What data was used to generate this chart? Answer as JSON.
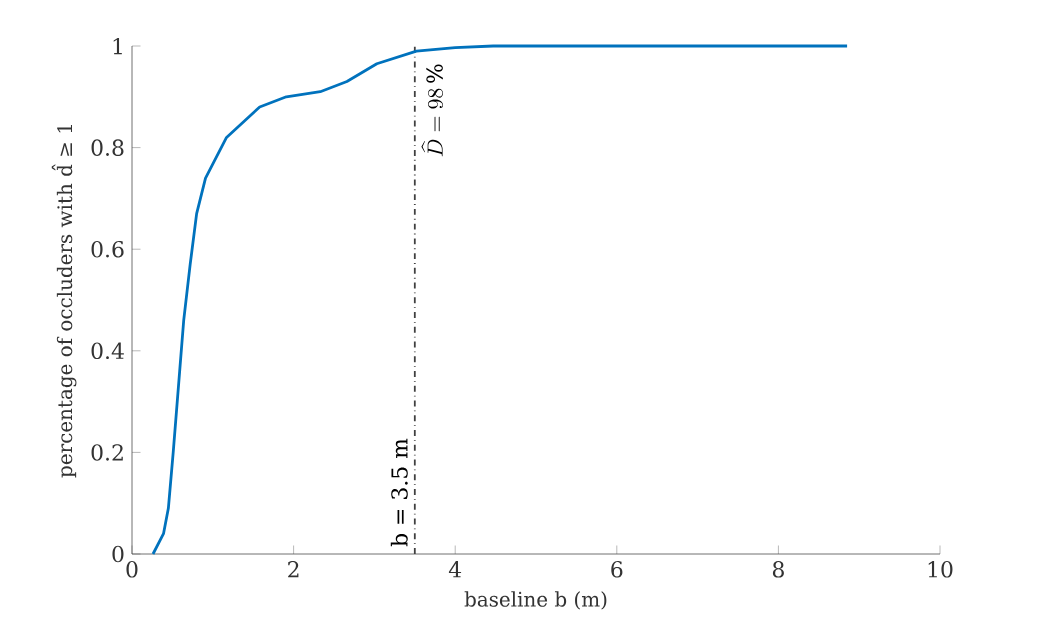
{
  "chart_data": {
    "type": "line",
    "xlabel": "baseline b (m)",
    "ylabel": "percentage of occluders with d̂ ≥ 1",
    "xlim": [
      0,
      10
    ],
    "ylim": [
      0,
      1
    ],
    "xticks": [
      0,
      2,
      4,
      6,
      8,
      10
    ],
    "yticks": [
      0,
      0.2,
      0.4,
      0.6,
      0.8,
      1
    ],
    "grid": false,
    "series": [
      {
        "color": "#0072bd",
        "x": [
          0.26,
          0.39,
          0.45,
          0.51,
          0.59,
          0.64,
          0.72,
          0.8,
          0.91,
          1.17,
          1.58,
          1.91,
          2.33,
          2.66,
          3.03,
          3.52,
          4.0,
          4.47,
          8.85
        ],
        "values": [
          0,
          0.04,
          0.09,
          0.2,
          0.36,
          0.46,
          0.57,
          0.67,
          0.74,
          0.82,
          0.88,
          0.9,
          0.91,
          0.93,
          0.965,
          0.99,
          0.997,
          1.0,
          1.0
        ]
      }
    ],
    "ref_lines": [
      {
        "axis": "x",
        "value": 3.5,
        "label": "b = 3.5 m",
        "color": "#404040",
        "line_style": "dashdot"
      }
    ],
    "annotations": [
      {
        "text": "\\widehat{D} = 98\\,\\%",
        "x": 3.5,
        "y": 0.98
      }
    ]
  }
}
